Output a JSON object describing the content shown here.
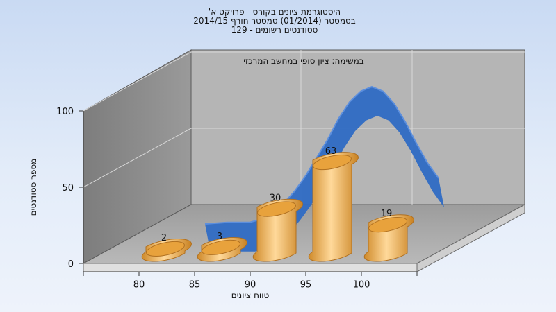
{
  "chart_data": {
    "type": "bar",
    "title_lines": [
      "היסטוגרמת ציונים בקורס - פרויקט א'",
      "בסמסטר  (01/2014)  סמסטר חורף 2014/15",
      "סטודנטים רשומים - 129"
    ],
    "annotation": "במשימה: ציון סופי במחשב המרכזי",
    "xlabel": "טווח ציונים",
    "ylabel": "מספר סטודנטים",
    "x_ticks": [
      "80",
      "85",
      "90",
      "95",
      "100"
    ],
    "y_ticks": [
      "0",
      "50",
      "100"
    ],
    "ylim": [
      0,
      100
    ],
    "categories": [
      "80",
      "85",
      "90",
      "95",
      "100"
    ],
    "values": [
      2,
      3,
      30,
      63,
      19
    ],
    "value_labels": [
      "2",
      "3",
      "30",
      "63",
      "19"
    ],
    "curve": {
      "x": [
        85,
        87,
        89,
        90,
        91,
        92,
        93,
        94,
        95,
        96,
        97,
        98,
        99,
        100,
        101,
        102,
        103,
        104,
        105,
        106
      ],
      "y": [
        5,
        6,
        6,
        8,
        12,
        18,
        26,
        36,
        48,
        60,
        74,
        85,
        92,
        95,
        92,
        84,
        72,
        58,
        45,
        35
      ]
    },
    "colors": {
      "bar": "#e8a23c",
      "curve": "#2f6bc4",
      "wall": "#8e8e8e",
      "back_wall": "#b3b3b3",
      "floor": "#a6a6a6"
    }
  }
}
